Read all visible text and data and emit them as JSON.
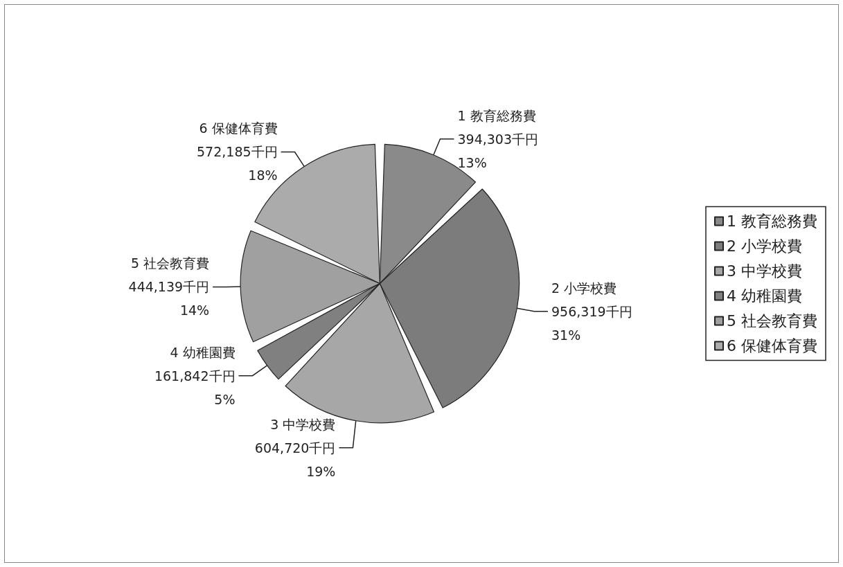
{
  "chart_data": {
    "type": "pie",
    "categories": [
      "1 教育総務費",
      "2 小学校費",
      "3 中学校費",
      "4 幼稚園費",
      "5 社会教育費",
      "6 保健体育費"
    ],
    "values": [
      394303,
      956319,
      604720,
      161842,
      444139,
      572185
    ],
    "value_labels": [
      "394,303千円\n13%",
      "956,319千円\n31%",
      "604,720千円\n19%",
      "161,842千円\n5%",
      "444,139千円\n14%",
      "572,185千円\n18%"
    ],
    "colors": [
      "#8a8a8a",
      "#7c7c7c",
      "#a7a7a7",
      "#808080",
      "#a0a0a0",
      "#ababab"
    ],
    "legend": "right"
  }
}
